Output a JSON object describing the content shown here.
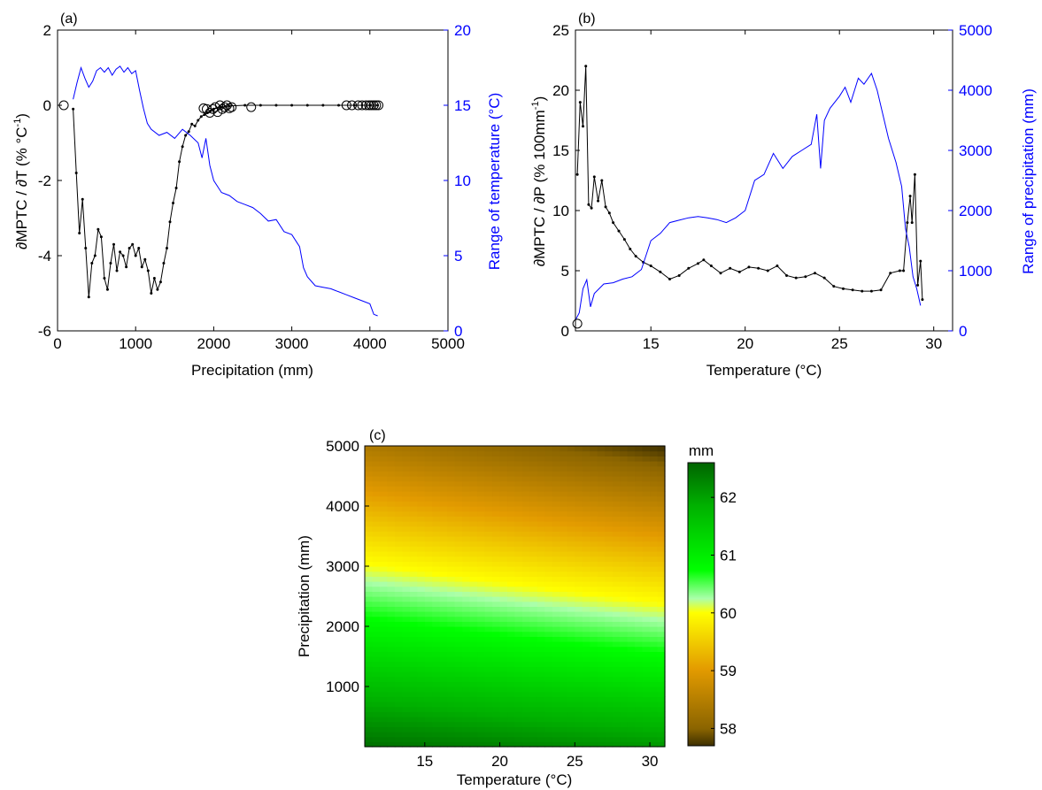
{
  "chart_data": [
    {
      "panel_label": "(a)",
      "type": "line",
      "xlabel": "Precipitation (mm)",
      "ylabel_left": "∂MPTC / ∂T (% °C",
      "ylabel_left_sup": "-1",
      "ylabel_left_end": ")",
      "ylabel_right": "Range of temperature (°C)",
      "xlim": [
        0,
        5000
      ],
      "xticks": [
        "0",
        "1000",
        "2000",
        "3000",
        "4000",
        "5000"
      ],
      "ylim_left": [
        -6,
        2
      ],
      "yticks_left": [
        "-6",
        "-4",
        "-2",
        "0",
        "2"
      ],
      "ylim_right": [
        0,
        20
      ],
      "yticks_right": [
        "0",
        "5",
        "10",
        "15",
        "20"
      ],
      "left_color": "#000000",
      "right_color": "#0000ff",
      "series": [
        {
          "axis": "left",
          "color": "#000000",
          "x": [
            200,
            240,
            280,
            320,
            360,
            400,
            440,
            480,
            520,
            560,
            600,
            640,
            680,
            720,
            760,
            800,
            840,
            880,
            920,
            960,
            1000,
            1040,
            1080,
            1120,
            1160,
            1200,
            1240,
            1280,
            1320,
            1360,
            1400,
            1440,
            1480,
            1520,
            1560,
            1600,
            1640,
            1680,
            1720,
            1760,
            1800,
            1840,
            1880,
            1920,
            1960,
            2000,
            2100,
            2200,
            2400,
            2600,
            2800,
            3000,
            3200,
            3400,
            3600,
            3800,
            4000,
            4100
          ],
          "y": [
            -0.1,
            -1.8,
            -3.4,
            -2.5,
            -3.8,
            -5.1,
            -4.2,
            -4.0,
            -3.3,
            -3.5,
            -4.6,
            -4.9,
            -4.2,
            -3.7,
            -4.4,
            -3.9,
            -4.0,
            -4.3,
            -3.8,
            -3.7,
            -4.0,
            -3.8,
            -4.3,
            -4.1,
            -4.4,
            -5.0,
            -4.6,
            -4.9,
            -4.7,
            -4.2,
            -3.8,
            -3.1,
            -2.6,
            -2.2,
            -1.5,
            -1.1,
            -0.8,
            -0.7,
            -0.5,
            -0.55,
            -0.4,
            -0.3,
            -0.25,
            -0.2,
            -0.15,
            -0.1,
            -0.05,
            -0.02,
            0,
            0,
            0,
            0,
            0,
            0,
            0,
            0,
            0,
            0
          ]
        },
        {
          "axis": "right",
          "color": "#0000ff",
          "x": [
            200,
            250,
            300,
            350,
            400,
            450,
            500,
            550,
            600,
            650,
            700,
            750,
            800,
            850,
            900,
            950,
            1000,
            1050,
            1100,
            1150,
            1200,
            1300,
            1400,
            1500,
            1600,
            1700,
            1800,
            1850,
            1900,
            1950,
            2000,
            2100,
            2200,
            2300,
            2400,
            2500,
            2600,
            2700,
            2800,
            2900,
            3000,
            3100,
            3150,
            3200,
            3300,
            3400,
            3500,
            3550,
            3700,
            3800,
            3900,
            4000,
            4050,
            4100
          ],
          "y": [
            15.4,
            16.5,
            17.5,
            16.8,
            16.2,
            16.6,
            17.3,
            17.5,
            17.2,
            17.5,
            17.0,
            17.4,
            17.6,
            17.2,
            17.5,
            17.1,
            17.3,
            16.0,
            14.8,
            13.8,
            13.4,
            13.0,
            13.2,
            12.8,
            13.4,
            13.0,
            12.5,
            11.5,
            12.8,
            11.0,
            10.0,
            9.2,
            9.0,
            8.6,
            8.4,
            8.2,
            7.8,
            7.3,
            7.4,
            6.6,
            6.4,
            5.6,
            4.2,
            3.6,
            3.0,
            2.9,
            2.8,
            2.7,
            2.4,
            2.2,
            2.0,
            1.8,
            1.1,
            1.0
          ]
        },
        {
          "axis": "left",
          "style": "circles",
          "color": "#000000",
          "x": [
            80,
            1870,
            1910,
            1950,
            1990,
            2020,
            2050,
            2080,
            2110,
            2140,
            2170,
            2200,
            2230,
            2480,
            3700,
            3770,
            3850,
            3900,
            3950,
            3990,
            4020,
            4050,
            4080,
            4110
          ],
          "y": [
            0,
            -0.08,
            -0.1,
            -0.2,
            -0.1,
            -0.05,
            -0.18,
            0,
            -0.1,
            -0.05,
            0,
            -0.08,
            -0.05,
            -0.05,
            0,
            0,
            0,
            0,
            0,
            0,
            0,
            0,
            0,
            0
          ]
        }
      ]
    },
    {
      "panel_label": "(b)",
      "type": "line",
      "xlabel": "Temperature (°C)",
      "ylabel_left": "∂MPTC / ∂P (% 100mm",
      "ylabel_left_sup": "-1",
      "ylabel_left_end": ")",
      "ylabel_right": "Range of precipitation (mm)",
      "xlim": [
        11,
        31
      ],
      "xticks": [
        "15",
        "20",
        "25",
        "30"
      ],
      "xtick_values": [
        15,
        20,
        25,
        30
      ],
      "ylim_left": [
        0,
        25
      ],
      "yticks_left": [
        "0",
        "5",
        "10",
        "15",
        "20",
        "25"
      ],
      "ylim_right": [
        0,
        5000
      ],
      "yticks_right": [
        "0",
        "1000",
        "2000",
        "3000",
        "4000",
        "5000"
      ],
      "left_color": "#000000",
      "right_color": "#0000ff",
      "series": [
        {
          "axis": "left",
          "color": "#000000",
          "x": [
            11.1,
            11.25,
            11.4,
            11.55,
            11.7,
            11.85,
            12.0,
            12.2,
            12.4,
            12.6,
            12.8,
            13.0,
            13.3,
            13.6,
            13.9,
            14.2,
            14.6,
            15.0,
            15.5,
            16.0,
            16.5,
            17.0,
            17.5,
            17.8,
            18.2,
            18.7,
            19.2,
            19.7,
            20.2,
            20.7,
            21.2,
            21.7,
            22.2,
            22.7,
            23.2,
            23.7,
            24.2,
            24.7,
            25.2,
            25.7,
            26.2,
            26.7,
            27.2,
            27.7,
            28.2,
            28.4,
            28.6,
            28.75,
            28.85,
            29.0,
            29.15,
            29.3,
            29.4
          ],
          "y": [
            13,
            19,
            17,
            22,
            10.5,
            10.2,
            12.8,
            10.8,
            12.5,
            10.3,
            9.8,
            9.0,
            8.3,
            7.6,
            6.8,
            6.2,
            5.7,
            5.4,
            4.9,
            4.3,
            4.6,
            5.2,
            5.6,
            5.9,
            5.4,
            4.8,
            5.2,
            4.9,
            5.3,
            5.2,
            5.0,
            5.4,
            4.6,
            4.4,
            4.5,
            4.8,
            4.4,
            3.7,
            3.5,
            3.4,
            3.3,
            3.3,
            3.4,
            4.8,
            5.0,
            5.0,
            9.0,
            11.2,
            9.0,
            13.0,
            3.8,
            5.8,
            2.6
          ]
        },
        {
          "axis": "right",
          "color": "#0000ff",
          "x": [
            11.0,
            11.2,
            11.4,
            11.6,
            11.8,
            12.0,
            12.5,
            13.0,
            13.5,
            14.0,
            14.5,
            15.0,
            15.5,
            16.0,
            16.5,
            17.0,
            17.5,
            18.0,
            18.5,
            19.0,
            19.5,
            20.0,
            20.5,
            21.0,
            21.5,
            22.0,
            22.5,
            23.0,
            23.5,
            23.8,
            24.0,
            24.2,
            24.5,
            25.0,
            25.3,
            25.6,
            26.0,
            26.3,
            26.7,
            27.0,
            27.3,
            27.6,
            28.0,
            28.3,
            28.5,
            28.7,
            28.9,
            29.1,
            29.3
          ],
          "y": [
            180,
            300,
            700,
            850,
            400,
            620,
            780,
            800,
            860,
            900,
            1020,
            1500,
            1620,
            1800,
            1840,
            1880,
            1900,
            1880,
            1850,
            1800,
            1880,
            2000,
            2500,
            2600,
            2950,
            2700,
            2900,
            3000,
            3100,
            3600,
            2700,
            3500,
            3700,
            3900,
            4050,
            3800,
            4200,
            4100,
            4280,
            4000,
            3600,
            3200,
            2800,
            2400,
            1700,
            1400,
            900,
            700,
            420
          ]
        },
        {
          "axis": "left",
          "style": "circles",
          "color": "#000000",
          "x": [
            11.1
          ],
          "y": [
            0.6
          ]
        }
      ]
    },
    {
      "panel_label": "(c)",
      "type": "heatmap",
      "xlabel": "Temperature (°C)",
      "ylabel": "Precipitation (mm)",
      "xlim": [
        11,
        31
      ],
      "xticks": [
        "15",
        "20",
        "25",
        "30"
      ],
      "xtick_values": [
        15,
        20,
        25,
        30
      ],
      "ylim": [
        0,
        5000
      ],
      "yticks": [
        "1000",
        "2000",
        "3000",
        "4000",
        "5000"
      ],
      "ytick_values": [
        1000,
        2000,
        3000,
        4000,
        5000
      ],
      "colorbar_label": "mm",
      "colorbar_range": [
        57.7,
        62.6
      ],
      "colorbar_ticks": [
        "58",
        "59",
        "60",
        "61",
        "62"
      ],
      "colorbar_tick_values": [
        58,
        59,
        60,
        61,
        62
      ],
      "colorscale": [
        "#3d2f00",
        "#b07a00",
        "#e39b00",
        "#ffff00",
        "#00ff00",
        "#00b000",
        "#006400"
      ],
      "corner_values": {
        "T11_P0": 62.5,
        "T31_P0": 62.1,
        "T11_P5000": 58.4,
        "T31_P5000": 57.7
      }
    }
  ]
}
